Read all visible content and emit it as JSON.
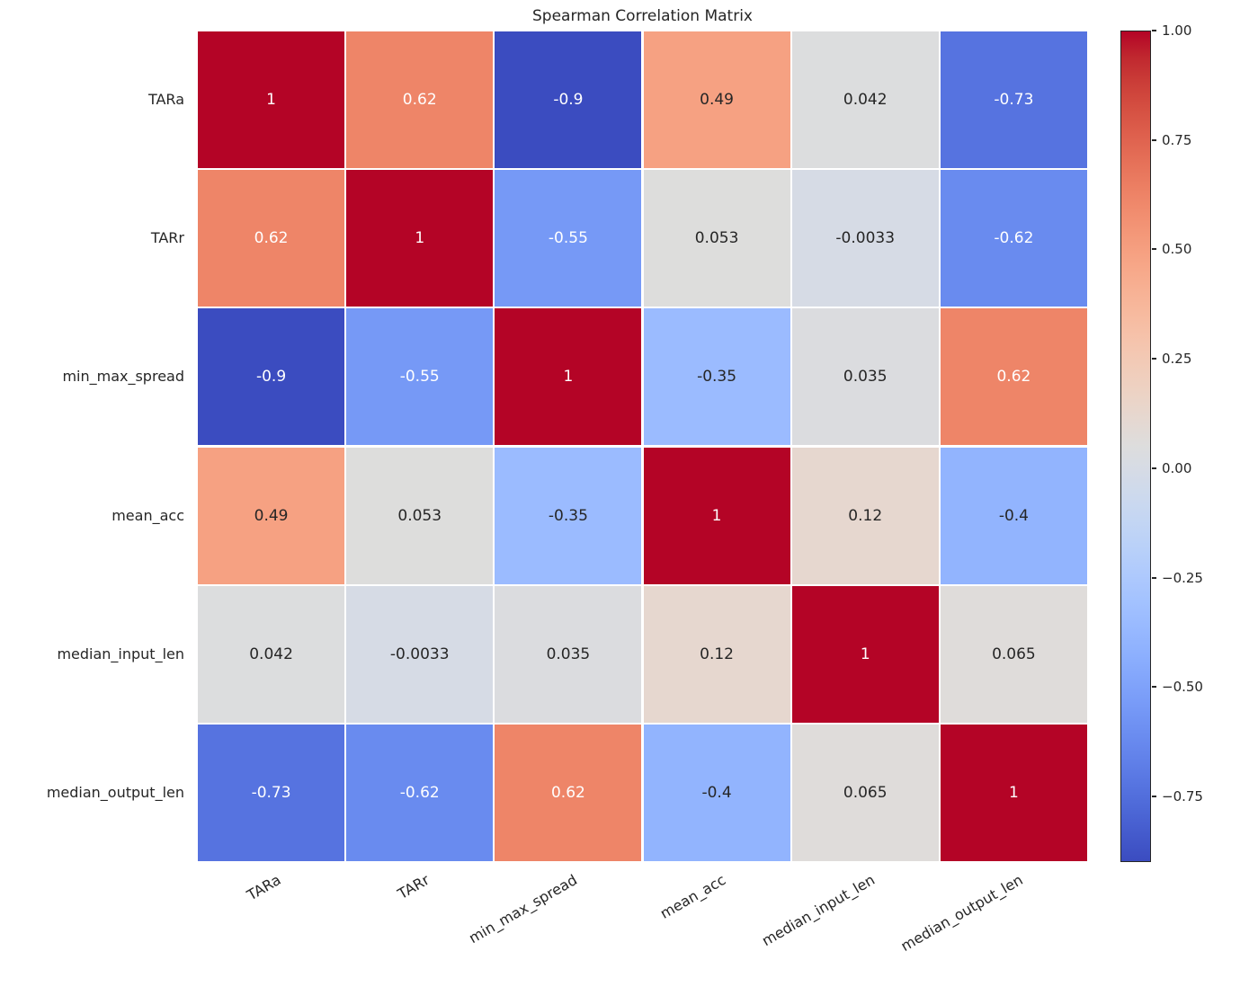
{
  "chart_data": {
    "type": "heatmap",
    "title": "Spearman Correlation Matrix",
    "labels": [
      "TARa",
      "TARr",
      "min_max_spread",
      "mean_acc",
      "median_input_len",
      "median_output_len"
    ],
    "matrix": [
      [
        1,
        0.62,
        -0.9,
        0.49,
        0.042,
        -0.73
      ],
      [
        0.62,
        1,
        -0.55,
        0.053,
        -0.0033,
        -0.62
      ],
      [
        -0.9,
        -0.55,
        1,
        -0.35,
        0.035,
        0.62
      ],
      [
        0.49,
        0.053,
        -0.35,
        1,
        0.12,
        -0.4
      ],
      [
        0.042,
        -0.0033,
        0.035,
        0.12,
        1,
        0.065
      ],
      [
        -0.73,
        -0.62,
        0.62,
        -0.4,
        0.065,
        1
      ]
    ],
    "annotations": [
      [
        "1",
        "0.62",
        "-0.9",
        "0.49",
        "0.042",
        "-0.73"
      ],
      [
        "0.62",
        "1",
        "-0.55",
        "0.053",
        "-0.0033",
        "-0.62"
      ],
      [
        "-0.9",
        "-0.55",
        "1",
        "-0.35",
        "0.035",
        "0.62"
      ],
      [
        "0.49",
        "0.053",
        "-0.35",
        "1",
        "0.12",
        "-0.4"
      ],
      [
        "0.042",
        "-0.0033",
        "0.035",
        "0.12",
        "1",
        "0.065"
      ],
      [
        "-0.73",
        "-0.62",
        "0.62",
        "-0.4",
        "0.065",
        "1"
      ]
    ],
    "vmin": -0.9,
    "vmax": 1.0,
    "grid": true,
    "grid_color": "#ffffff",
    "background": "#ffffff",
    "annotation_text_dark": "#262626",
    "annotation_text_light": "#ffffff",
    "legend_position": "right-colorbar",
    "colorbar_ticks": [
      "1.00",
      "0.75",
      "0.50",
      "0.25",
      "0.00",
      "−0.25",
      "−0.50",
      "−0.75"
    ],
    "colorbar_tick_values": [
      1.0,
      0.75,
      0.5,
      0.25,
      0.0,
      -0.25,
      -0.5,
      -0.75
    ],
    "colormap": {
      "name": "coolwarm",
      "stops": [
        "#3b4cc0",
        "#445acc",
        "#4d68d7",
        "#5775e1",
        "#6282ea",
        "#6c8ef1",
        "#779af7",
        "#82a5fb",
        "#8db0fe",
        "#98b9ff",
        "#a3c2ff",
        "#aec9fd",
        "#b8d0f9",
        "#c2d5f4",
        "#ccd9ee",
        "#d5dbe6",
        "#dddddd",
        "#e5d8d1",
        "#ecd3c5",
        "#f1ccb9",
        "#f5c4ad",
        "#f7bba0",
        "#f7b194",
        "#f7a687",
        "#f49a7b",
        "#f18d6f",
        "#ec7f63",
        "#e57058",
        "#de604d",
        "#d55042",
        "#cb3e38",
        "#c0282f",
        "#b40426"
      ]
    }
  }
}
